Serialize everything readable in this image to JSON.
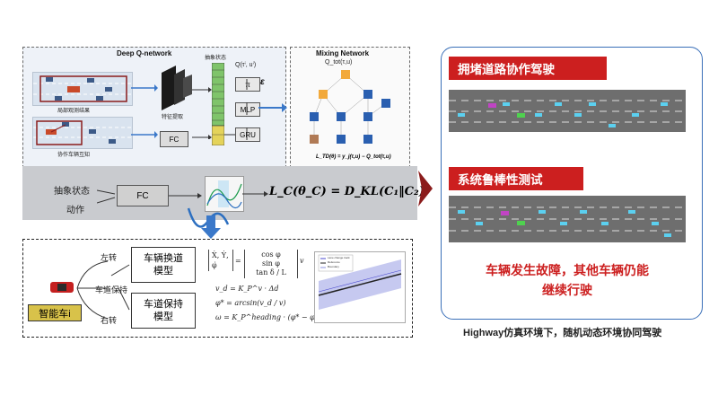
{
  "dqn": {
    "title": "Deep Q-network",
    "abstract_state_label": "抽象状态",
    "feature_label": "特征提取",
    "fc_label": "FC",
    "q_label": "Q(τⁱ, uⁱ)",
    "pi_label": "π",
    "mlp_label": "MLP",
    "gru_label": "GRU",
    "local_obs_label": "局部观测结果",
    "coop_label": "协作车辆互知"
  },
  "mixing": {
    "title": "Mixing Network",
    "q_tot": "Q_tot(τ,u)",
    "epsilon": "ε",
    "loss_td": "L_TD(θ) = y_j(τ,u) − Q_tot(τ,u)"
  },
  "band": {
    "abstract_state": "抽象状态",
    "action": "动作",
    "fc": "FC",
    "loss_formula": "L_C(θ_C) = D_KL(C₁‖C₂)"
  },
  "bottom": {
    "car_label": "智能车i",
    "left_turn": "左转",
    "lane_keep_small": "车道保持",
    "right_turn": "右转",
    "lane_change_model": "车辆换道模型",
    "lane_keep_model": "车道保持模型",
    "vec_lhs": "Ẋ, Ẏ, φ̇",
    "vec_rhs_1": "cos φ",
    "vec_rhs_2": "sin φ",
    "vec_rhs_3": "tan δ / L",
    "vec_v": "v",
    "eq1": "v_d = K_P^v · Δd",
    "eq2": "φ* = arcsin(v_d / v)",
    "eq3": "ω = K_P^heading · (φ* − φ)",
    "plot_legend_1": "Lane change track",
    "plot_legend_2": "Reference",
    "plot_legend_3": "Boundary"
  },
  "right": {
    "banner1": "拥堵道路协作驾驶",
    "banner2": "系统鲁棒性测试",
    "failure_text_line1": "车辆发生故障，其他车辆仍能",
    "failure_text_line2": "继续行驶",
    "caption": "Highway仿真环境下，随机动态环境协同驾驶"
  },
  "colors": {
    "red": "#cc1f1f",
    "blue_arrow": "#3a78c9",
    "panel_border": "#3a6fb8",
    "road": "#6e6e6e",
    "green": "#6ab04c",
    "darkred": "#8b1c1c"
  }
}
